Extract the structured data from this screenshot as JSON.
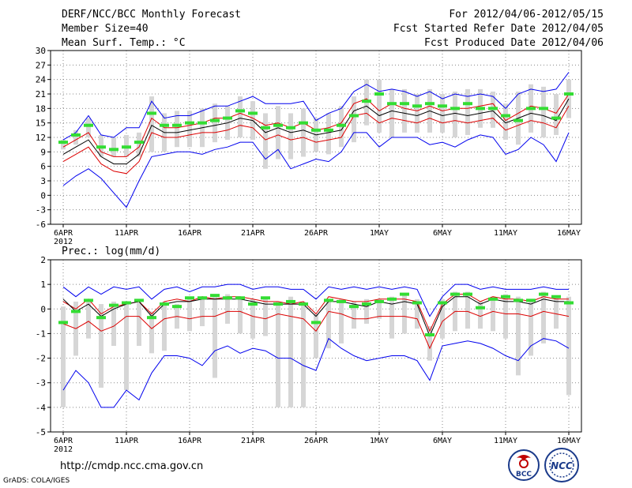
{
  "header": {
    "title": "DERF/NCC/BCC Monthly Forecast",
    "member": "Member Size=40",
    "variable": "Mean Surf. Temp.: °C",
    "period": "For 2012/04/06-2012/05/15",
    "started": "Fcst Started Refer Date 2012/04/05",
    "produced": "Fcst Produced Date 2012/04/06"
  },
  "footer": {
    "url": "http://cmdp.ncc.cma.gov.cn",
    "credit": "GrADS: COLA/IGES"
  },
  "logos": {
    "bcc": "BCC",
    "ncc": "NCC"
  },
  "colors": {
    "envelope": "#0000ee",
    "inner": "#dd0000",
    "mean": "#000000",
    "obs": "#33dd33",
    "bars": "#d6d6d6",
    "grid": "#888888"
  },
  "chart_data": [
    {
      "type": "line",
      "title": "Mean Surf. Temp.: °C",
      "year_label": "2012",
      "x_ticks": [
        "6APR",
        "11APR",
        "16APR",
        "21APR",
        "26APR",
        "1MAY",
        "6MAY",
        "11MAY",
        "16MAY"
      ],
      "ylim": [
        -6,
        30
      ],
      "y_ticks": [
        -6,
        -3,
        0,
        3,
        6,
        9,
        12,
        15,
        18,
        21,
        24,
        27,
        30
      ],
      "series": [
        {
          "name": "max",
          "color": "#0000ee",
          "values": [
            2,
            4,
            5.5,
            3.5,
            0.5,
            -2.5,
            3,
            8,
            8.5,
            9,
            9,
            8.5,
            9.5,
            10,
            11,
            11,
            7.5,
            9.5,
            5.5,
            6.5,
            7.5,
            7,
            9,
            13,
            13,
            10,
            12,
            12,
            12,
            10.5,
            11,
            10,
            11.5,
            12.5,
            12,
            8.5,
            9.5,
            12,
            10.5,
            7,
            13
          ]
        },
        {
          "name": "upper",
          "color": "#0000ee",
          "values": [
            11.5,
            13,
            16.5,
            12.5,
            12,
            14,
            14,
            19.5,
            16,
            16.5,
            16.5,
            17.5,
            18.5,
            18.5,
            19.5,
            20.5,
            19,
            19,
            19,
            19.5,
            15.5,
            17,
            18,
            21.5,
            23,
            21.5,
            22,
            21.5,
            20.5,
            21.5,
            20,
            21,
            20.5,
            21,
            20.5,
            18,
            21,
            22,
            21.5,
            22,
            25.5
          ]
        },
        {
          "name": "inner_upper",
          "color": "#dd0000",
          "values": [
            10,
            11.5,
            13,
            9,
            8,
            8,
            10,
            16,
            14,
            14,
            14.5,
            15,
            16,
            16,
            17,
            16,
            14.5,
            15,
            14,
            15,
            13.5,
            14,
            15,
            19,
            20,
            17.5,
            19,
            18,
            17.5,
            18.5,
            17.5,
            18,
            18,
            18.5,
            19,
            15.5,
            17,
            18.5,
            18,
            17,
            21
          ]
        },
        {
          "name": "mean",
          "color": "#000000",
          "values": [
            8.5,
            10,
            11.5,
            8,
            6.5,
            6.5,
            8.5,
            14.5,
            13,
            13,
            13.5,
            14,
            14.5,
            15,
            16,
            15.5,
            13,
            14,
            13,
            13.5,
            12.5,
            13,
            13.5,
            17.5,
            18.5,
            16.5,
            17.5,
            17,
            16.5,
            17.5,
            16.5,
            17,
            16.5,
            17,
            17.5,
            15,
            16,
            17,
            16.5,
            15.5,
            20
          ]
        },
        {
          "name": "inner_lower",
          "color": "#dd0000",
          "values": [
            7,
            8.5,
            10,
            6.5,
            5,
            4.5,
            7,
            13,
            12,
            12,
            12.5,
            13,
            13,
            13.5,
            14.5,
            14,
            11.5,
            12.5,
            11.5,
            12,
            11,
            11.5,
            12,
            16.5,
            17,
            15,
            16,
            15.5,
            15,
            16,
            15,
            15.5,
            15,
            15.5,
            16,
            13.5,
            14.5,
            15.5,
            15,
            14,
            18.5
          ]
        },
        {
          "name": "observed",
          "color": "#33dd33",
          "values": [
            11,
            12.5,
            14.5,
            10,
            9.5,
            10,
            11,
            17,
            14.5,
            14.5,
            15,
            15,
            15.5,
            16,
            17.5,
            17,
            14,
            14.5,
            14,
            15,
            13.5,
            13.5,
            14.5,
            16.5,
            19.5,
            21,
            19,
            19,
            18.5,
            19,
            18.5,
            18,
            19,
            18,
            18,
            16.5,
            15.5,
            18,
            18,
            16,
            21
          ]
        },
        {
          "name": "bar_top",
          "color": "#d6d6d6",
          "values": [
            11.5,
            13.5,
            16,
            12.5,
            12,
            12.5,
            13,
            20.5,
            17,
            17.5,
            17.5,
            18,
            19,
            18.5,
            20.5,
            19.5,
            17,
            18.5,
            17,
            18,
            16,
            17,
            18.5,
            20.5,
            24,
            24,
            22,
            22,
            21,
            22,
            21,
            21.5,
            22,
            22,
            21.5,
            19,
            21.5,
            23,
            22.5,
            21,
            24
          ]
        },
        {
          "name": "bar_bottom",
          "color": "#d6d6d6",
          "values": [
            9.5,
            10.5,
            12,
            8,
            8,
            8,
            8,
            9,
            9,
            10,
            10,
            10,
            11,
            11.5,
            12,
            11.5,
            5.5,
            7.5,
            7.5,
            8,
            9,
            8.5,
            10,
            11,
            14.5,
            13,
            12,
            13,
            13,
            13,
            13,
            12,
            12.5,
            14,
            14,
            11.5,
            10.5,
            13,
            12,
            12.5,
            16
          ]
        }
      ]
    },
    {
      "type": "line",
      "title": "Prec.: log(mm/d)",
      "year_label": "2012",
      "x_ticks": [
        "6APR",
        "11APR",
        "16APR",
        "21APR",
        "26APR",
        "1MAY",
        "6MAY",
        "11MAY",
        "16MAY"
      ],
      "ylim": [
        -5,
        2
      ],
      "y_ticks": [
        -5,
        -4,
        -3,
        -2,
        -1,
        0,
        1,
        2
      ],
      "series": [
        {
          "name": "max",
          "color": "#0000ee",
          "values": [
            -3.3,
            -2.5,
            -3,
            -4,
            -4,
            -3.3,
            -3.7,
            -2.6,
            -1.9,
            -1.9,
            -2,
            -2.3,
            -1.7,
            -1.5,
            -1.8,
            -1.6,
            -1.7,
            -2,
            -2,
            -2.3,
            -2.5,
            -1.2,
            -1.6,
            -1.9,
            -2.1,
            -2,
            -1.9,
            -1.9,
            -2.1,
            -2.9,
            -1.5,
            -1.4,
            -1.3,
            -1.4,
            -1.6,
            -1.9,
            -2.1,
            -1.5,
            -1.2,
            -1.3,
            -1.6
          ]
        },
        {
          "name": "upper",
          "color": "#0000ee",
          "values": [
            0.9,
            0.5,
            0.9,
            0.6,
            0.9,
            0.8,
            0.9,
            0.4,
            0.8,
            0.9,
            0.7,
            0.9,
            0.9,
            1,
            1,
            0.8,
            0.9,
            0.9,
            0.8,
            0.8,
            0.4,
            0.9,
            0.8,
            0.9,
            0.8,
            0.9,
            0.8,
            0.9,
            0.8,
            -0.3,
            0.5,
            1,
            1,
            0.8,
            0.9,
            0.8,
            0.8,
            0.8,
            0.9,
            0.8,
            0.8
          ]
        },
        {
          "name": "inner_upper",
          "color": "#dd0000",
          "values": [
            0.3,
            0,
            0.4,
            -0.2,
            0.1,
            0.2,
            0.3,
            -0.2,
            0.3,
            0.4,
            0.3,
            0.5,
            0.4,
            0.5,
            0.5,
            0.4,
            0.3,
            0.3,
            0.2,
            0.3,
            -0.2,
            0.5,
            0.4,
            0.3,
            0.3,
            0.4,
            0.4,
            0.4,
            0.3,
            -0.9,
            0.2,
            0.6,
            0.6,
            0.3,
            0.5,
            0.4,
            0.4,
            0.3,
            0.5,
            0.4,
            0.4
          ]
        },
        {
          "name": "mean",
          "color": "#000000",
          "values": [
            0.4,
            -0.1,
            0.2,
            -0.3,
            0,
            0.2,
            0.3,
            -0.3,
            0.2,
            0.3,
            0.3,
            0.4,
            0.4,
            0.4,
            0.4,
            0.3,
            0.2,
            0.2,
            0.2,
            0.2,
            -0.3,
            0.3,
            0.3,
            0.2,
            0.1,
            0.3,
            0.2,
            0.3,
            0.2,
            -1.1,
            0.1,
            0.5,
            0.5,
            0.2,
            0.4,
            0.3,
            0.3,
            0.2,
            0.4,
            0.3,
            0.3
          ]
        },
        {
          "name": "inner_lower",
          "color": "#dd0000",
          "values": [
            -0.6,
            -0.8,
            -0.5,
            -0.9,
            -0.7,
            -0.3,
            -0.3,
            -0.8,
            -0.4,
            -0.3,
            -0.4,
            -0.3,
            -0.3,
            -0.1,
            -0.1,
            -0.3,
            -0.4,
            -0.2,
            -0.3,
            -0.4,
            -0.9,
            -0.1,
            -0.2,
            -0.4,
            -0.4,
            -0.3,
            -0.3,
            -0.3,
            -0.4,
            -1.6,
            -0.5,
            -0.1,
            -0.1,
            -0.3,
            -0.1,
            -0.2,
            -0.2,
            -0.3,
            -0.1,
            -0.2,
            -0.3
          ]
        },
        {
          "name": "observed",
          "color": "#33dd33",
          "values": [
            -0.55,
            -0.1,
            0.35,
            -0.35,
            0.15,
            0.25,
            0.35,
            -0.35,
            0.2,
            0.1,
            0.45,
            0.45,
            0.55,
            0.45,
            0.45,
            0.2,
            0.45,
            0.2,
            0.3,
            0.2,
            -0.55,
            0.35,
            0.3,
            0.1,
            0.2,
            0.3,
            0.4,
            0.6,
            0.25,
            -1.05,
            0.25,
            0.6,
            0.6,
            0.05,
            0.4,
            0.5,
            0.35,
            0.35,
            0.6,
            0.5,
            0.25
          ]
        },
        {
          "name": "bar_top",
          "color": "#d6d6d6",
          "values": [
            0.1,
            0.3,
            0.4,
            0.2,
            0.3,
            0.3,
            0.4,
            -0.1,
            0.3,
            0.2,
            0.5,
            0.5,
            0.6,
            0.6,
            0.5,
            0.4,
            0.4,
            0.3,
            0.5,
            0.3,
            -0.2,
            0.4,
            0.4,
            0.3,
            0.4,
            0.4,
            0.5,
            0.6,
            0.4,
            -0.7,
            0.4,
            0.7,
            0.7,
            0.3,
            0.5,
            0.6,
            0.5,
            0.4,
            0.7,
            0.5,
            0.5
          ]
        },
        {
          "name": "bar_bottom",
          "color": "#d6d6d6",
          "values": [
            -4,
            -1.9,
            -1.2,
            -3.2,
            -1.5,
            -3.3,
            -1.5,
            -1.8,
            -1.7,
            -0.8,
            -0.9,
            -0.7,
            -2.8,
            -0.6,
            -1,
            -1.2,
            -1.1,
            -4,
            -4,
            -4,
            -2,
            -1.6,
            -1.4,
            -0.8,
            -0.6,
            -0.4,
            -1.2,
            -1,
            -0.8,
            -2.1,
            -1.2,
            -0.9,
            -0.8,
            -0.8,
            -0.9,
            -1.2,
            -2.7,
            -1.9,
            -1.4,
            -0.8,
            -3.5
          ]
        }
      ]
    }
  ]
}
